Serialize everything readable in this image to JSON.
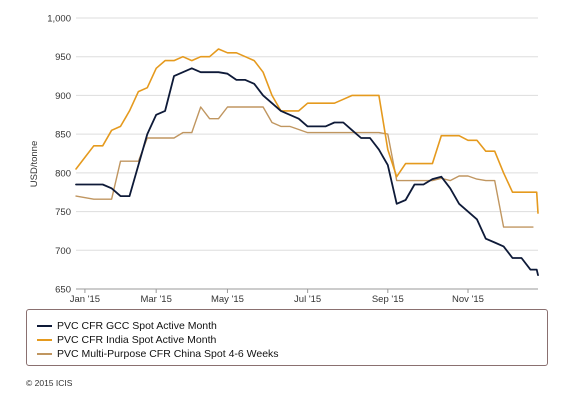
{
  "colors": {
    "gcc": "#0e1a38",
    "india": "#e59a1e",
    "china": "#c09660",
    "grid": "#dddddd",
    "axis": "#999999"
  },
  "chart_data": {
    "type": "line",
    "title": "",
    "xlabel": "",
    "ylabel": "USD/tonne",
    "ylim": [
      650,
      1000
    ],
    "yticks": [
      650,
      700,
      750,
      800,
      850,
      900,
      950,
      1000
    ],
    "ytick_labels": [
      "650",
      "700",
      "750",
      "800",
      "850",
      "900",
      "950",
      "1,000"
    ],
    "xlim": [
      "2015-01-02",
      "2015-12-31"
    ],
    "xticks": [
      {
        "date": "2015-01-09",
        "label": "Jan '15"
      },
      {
        "date": "2015-03-06",
        "label": "Mar '15"
      },
      {
        "date": "2015-05-01",
        "label": "May '15"
      },
      {
        "date": "2015-07-03",
        "label": "Jul '15"
      },
      {
        "date": "2015-09-04",
        "label": "Sep '15"
      },
      {
        "date": "2015-11-06",
        "label": "Nov '15"
      }
    ],
    "grid": {
      "horizontal": true,
      "vertical": false
    },
    "legend": "bottom",
    "series": [
      {
        "name": "PVC CFR GCC Spot Active Month",
        "color_key": "gcc",
        "points": [
          [
            "2015-01-02",
            785
          ],
          [
            "2015-01-23",
            785
          ],
          [
            "2015-01-30",
            780
          ],
          [
            "2015-02-06",
            770
          ],
          [
            "2015-02-13",
            770
          ],
          [
            "2015-02-20",
            810
          ],
          [
            "2015-02-27",
            850
          ],
          [
            "2015-03-06",
            875
          ],
          [
            "2015-03-13",
            880
          ],
          [
            "2015-03-20",
            925
          ],
          [
            "2015-03-27",
            930
          ],
          [
            "2015-04-03",
            935
          ],
          [
            "2015-04-10",
            930
          ],
          [
            "2015-04-24",
            930
          ],
          [
            "2015-05-01",
            928
          ],
          [
            "2015-05-08",
            920
          ],
          [
            "2015-05-15",
            920
          ],
          [
            "2015-05-22",
            915
          ],
          [
            "2015-05-29",
            900
          ],
          [
            "2015-06-05",
            890
          ],
          [
            "2015-06-12",
            880
          ],
          [
            "2015-06-19",
            875
          ],
          [
            "2015-06-26",
            870
          ],
          [
            "2015-07-03",
            860
          ],
          [
            "2015-07-17",
            860
          ],
          [
            "2015-07-24",
            865
          ],
          [
            "2015-07-31",
            865
          ],
          [
            "2015-08-07",
            855
          ],
          [
            "2015-08-14",
            845
          ],
          [
            "2015-08-21",
            845
          ],
          [
            "2015-08-28",
            830
          ],
          [
            "2015-09-04",
            810
          ],
          [
            "2015-09-11",
            760
          ],
          [
            "2015-09-18",
            765
          ],
          [
            "2015-09-25",
            785
          ],
          [
            "2015-10-02",
            785
          ],
          [
            "2015-10-09",
            792
          ],
          [
            "2015-10-16",
            795
          ],
          [
            "2015-10-23",
            780
          ],
          [
            "2015-10-30",
            760
          ],
          [
            "2015-11-06",
            750
          ],
          [
            "2015-11-13",
            740
          ],
          [
            "2015-11-20",
            715
          ],
          [
            "2015-11-27",
            710
          ],
          [
            "2015-12-04",
            705
          ],
          [
            "2015-12-11",
            690
          ],
          [
            "2015-12-18",
            690
          ],
          [
            "2015-12-25",
            675
          ],
          [
            "2015-12-30",
            675
          ],
          [
            "2015-12-31",
            668
          ]
        ]
      },
      {
        "name": "PVC CFR India Spot Active Month",
        "color_key": "india",
        "points": [
          [
            "2015-01-02",
            805
          ],
          [
            "2015-01-09",
            820
          ],
          [
            "2015-01-16",
            835
          ],
          [
            "2015-01-23",
            835
          ],
          [
            "2015-01-30",
            855
          ],
          [
            "2015-02-06",
            860
          ],
          [
            "2015-02-13",
            880
          ],
          [
            "2015-02-20",
            905
          ],
          [
            "2015-02-27",
            910
          ],
          [
            "2015-03-06",
            935
          ],
          [
            "2015-03-13",
            945
          ],
          [
            "2015-03-20",
            945
          ],
          [
            "2015-03-27",
            950
          ],
          [
            "2015-04-03",
            945
          ],
          [
            "2015-04-10",
            950
          ],
          [
            "2015-04-17",
            950
          ],
          [
            "2015-04-24",
            960
          ],
          [
            "2015-05-01",
            955
          ],
          [
            "2015-05-08",
            955
          ],
          [
            "2015-05-15",
            950
          ],
          [
            "2015-05-22",
            945
          ],
          [
            "2015-05-29",
            930
          ],
          [
            "2015-06-05",
            900
          ],
          [
            "2015-06-12",
            880
          ],
          [
            "2015-06-26",
            880
          ],
          [
            "2015-07-03",
            890
          ],
          [
            "2015-07-24",
            890
          ],
          [
            "2015-07-31",
            895
          ],
          [
            "2015-08-07",
            900
          ],
          [
            "2015-08-28",
            900
          ],
          [
            "2015-09-04",
            830
          ],
          [
            "2015-09-11",
            795
          ],
          [
            "2015-09-18",
            812
          ],
          [
            "2015-09-25",
            812
          ],
          [
            "2015-10-09",
            812
          ],
          [
            "2015-10-16",
            848
          ],
          [
            "2015-10-30",
            848
          ],
          [
            "2015-11-06",
            842
          ],
          [
            "2015-11-13",
            842
          ],
          [
            "2015-11-20",
            828
          ],
          [
            "2015-11-27",
            828
          ],
          [
            "2015-12-04",
            800
          ],
          [
            "2015-12-11",
            775
          ],
          [
            "2015-12-30",
            775
          ],
          [
            "2015-12-31",
            748
          ]
        ]
      },
      {
        "name": "PVC Multi-Purpose CFR China Spot 4-6 Weeks",
        "color_key": "china",
        "points": [
          [
            "2015-01-02",
            770
          ],
          [
            "2015-01-16",
            766
          ],
          [
            "2015-01-30",
            766
          ],
          [
            "2015-02-06",
            815
          ],
          [
            "2015-02-20",
            815
          ],
          [
            "2015-02-27",
            845
          ],
          [
            "2015-03-20",
            845
          ],
          [
            "2015-03-27",
            852
          ],
          [
            "2015-04-03",
            852
          ],
          [
            "2015-04-10",
            885
          ],
          [
            "2015-04-17",
            870
          ],
          [
            "2015-04-24",
            870
          ],
          [
            "2015-05-01",
            885
          ],
          [
            "2015-05-29",
            885
          ],
          [
            "2015-06-05",
            865
          ],
          [
            "2015-06-12",
            860
          ],
          [
            "2015-06-19",
            860
          ],
          [
            "2015-07-03",
            852
          ],
          [
            "2015-08-28",
            852
          ],
          [
            "2015-09-04",
            850
          ],
          [
            "2015-09-11",
            790
          ],
          [
            "2015-09-25",
            790
          ],
          [
            "2015-10-09",
            790
          ],
          [
            "2015-10-16",
            793
          ],
          [
            "2015-10-23",
            790
          ],
          [
            "2015-10-30",
            796
          ],
          [
            "2015-11-06",
            796
          ],
          [
            "2015-11-13",
            792
          ],
          [
            "2015-11-20",
            790
          ],
          [
            "2015-11-27",
            790
          ],
          [
            "2015-12-04",
            730
          ],
          [
            "2015-12-27",
            730
          ]
        ]
      }
    ]
  },
  "legend_entries": [
    "PVC CFR GCC Spot Active Month",
    "PVC CFR India Spot Active Month",
    "PVC Multi-Purpose CFR China Spot 4-6 Weeks"
  ],
  "copyright": "© 2015 ICIS"
}
